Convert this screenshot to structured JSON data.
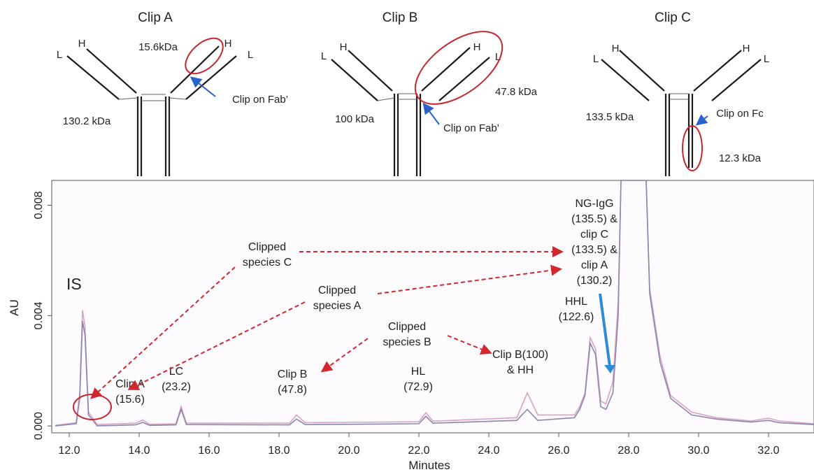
{
  "schematics": [
    {
      "title": "Clip A",
      "heavy_left": "H",
      "light_left": "L",
      "heavy_right": "H",
      "light_right": "L",
      "mass_main": "130.2 kDa",
      "mass_clip": "15.6kDa",
      "note": "Clip on Fab’"
    },
    {
      "title": "Clip B",
      "heavy_left": "H",
      "light_left": "L",
      "heavy_right": "H",
      "light_right": "L",
      "mass_main": "100 kDa",
      "mass_clip": "47.8 kDa",
      "note": "Clip on Fab’"
    },
    {
      "title": "Clip C",
      "heavy_left": "H",
      "light_left": "L",
      "heavy_right": "H",
      "light_right": "L",
      "mass_main": "133.5 kDa",
      "mass_clip": "12.3 kDa",
      "note": "Clip on Fc"
    }
  ],
  "chart_data": {
    "type": "line",
    "xlabel": "Minutes",
    "ylabel": "AU",
    "xlim": [
      11.5,
      33.3
    ],
    "ylim": [
      -0.00025,
      0.0089
    ],
    "x_ticks": [
      "12.0",
      "14.0",
      "16.0",
      "18.0",
      "20.0",
      "22.0",
      "24.0",
      "26.0",
      "28.0",
      "30.0",
      "32.0"
    ],
    "y_ticks": [
      "0.000",
      "0.004",
      "0.008"
    ],
    "series": [
      {
        "color": "#d8a3c0",
        "points": [
          [
            11.6,
            2e-05
          ],
          [
            12.2,
            0.00012
          ],
          [
            12.3,
            0.0012
          ],
          [
            12.38,
            0.0042
          ],
          [
            12.45,
            0.0036
          ],
          [
            12.55,
            0.0005
          ],
          [
            12.8,
            5e-05
          ],
          [
            13.9,
            0.0001
          ],
          [
            14.1,
            0.00022
          ],
          [
            14.3,
            6e-05
          ],
          [
            15.05,
            8e-05
          ],
          [
            15.2,
            0.0007
          ],
          [
            15.35,
            0.0001
          ],
          [
            18.3,
            0.0001
          ],
          [
            18.5,
            0.0004
          ],
          [
            18.75,
            0.00012
          ],
          [
            22.0,
            0.00015
          ],
          [
            22.2,
            0.00048
          ],
          [
            22.4,
            0.00017
          ],
          [
            24.8,
            0.0003
          ],
          [
            25.1,
            0.0012
          ],
          [
            25.4,
            0.0004
          ],
          [
            26.45,
            0.0004
          ],
          [
            26.6,
            0.0007
          ],
          [
            26.75,
            0.0012
          ],
          [
            26.9,
            0.0032
          ],
          [
            27.05,
            0.0028
          ],
          [
            27.2,
            0.0009
          ],
          [
            27.35,
            0.0008
          ],
          [
            27.55,
            0.0016
          ],
          [
            27.7,
            0.0045
          ],
          [
            27.78,
            0.0089
          ],
          [
            28.5,
            0.0089
          ],
          [
            28.6,
            0.005
          ],
          [
            28.9,
            0.0025
          ],
          [
            29.2,
            0.0011
          ],
          [
            29.8,
            0.0005
          ],
          [
            30.5,
            0.0003
          ],
          [
            31.5,
            0.00018
          ],
          [
            32.0,
            0.00028
          ],
          [
            32.3,
            0.00018
          ],
          [
            33.3,
            8e-05
          ]
        ]
      },
      {
        "color": "#8a86b0",
        "points": [
          [
            11.6,
            0.0
          ],
          [
            12.2,
            8e-05
          ],
          [
            12.3,
            0.001
          ],
          [
            12.38,
            0.0038
          ],
          [
            12.45,
            0.0033
          ],
          [
            12.55,
            0.0004
          ],
          [
            12.8,
            0.0
          ],
          [
            13.9,
            4e-05
          ],
          [
            14.1,
            0.00013
          ],
          [
            14.3,
            2e-05
          ],
          [
            15.05,
            4e-05
          ],
          [
            15.2,
            0.0006
          ],
          [
            15.35,
            5e-05
          ],
          [
            18.3,
            4e-05
          ],
          [
            18.5,
            0.00025
          ],
          [
            18.75,
            5e-05
          ],
          [
            22.0,
            8e-05
          ],
          [
            22.2,
            0.00035
          ],
          [
            22.4,
            0.0001
          ],
          [
            24.8,
            0.0002
          ],
          [
            25.1,
            0.0006
          ],
          [
            25.4,
            0.0002
          ],
          [
            26.45,
            0.0003
          ],
          [
            26.6,
            0.0006
          ],
          [
            26.75,
            0.0011
          ],
          [
            26.9,
            0.003
          ],
          [
            27.05,
            0.0026
          ],
          [
            27.2,
            0.0007
          ],
          [
            27.35,
            0.0006
          ],
          [
            27.55,
            0.0012
          ],
          [
            27.7,
            0.004
          ],
          [
            27.78,
            0.0089
          ],
          [
            28.5,
            0.0089
          ],
          [
            28.6,
            0.0048
          ],
          [
            28.9,
            0.0023
          ],
          [
            29.2,
            0.001
          ],
          [
            29.8,
            0.0004
          ],
          [
            30.5,
            0.00025
          ],
          [
            31.5,
            0.00014
          ],
          [
            32.0,
            0.0002
          ],
          [
            32.3,
            0.00012
          ],
          [
            33.3,
            5e-05
          ]
        ]
      }
    ],
    "annotations": {
      "is": "IS",
      "peaks": [
        {
          "lines": [
            "Clip A",
            "(15.6)"
          ]
        },
        {
          "lines": [
            "LC",
            "(23.2)"
          ]
        },
        {
          "lines": [
            "Clip B",
            "(47.8)"
          ]
        },
        {
          "lines": [
            "HL",
            "(72.9)"
          ]
        },
        {
          "lines": [
            "Clip B(100)",
            "& HH"
          ]
        },
        {
          "lines": [
            "HHL",
            "(122.6)"
          ]
        },
        {
          "lines": [
            "NG-IgG",
            "(135.5) &",
            "clip C",
            "(133.5) &",
            "clip A",
            "(130.2)"
          ]
        }
      ],
      "species": [
        {
          "lines": [
            "Clipped",
            "species C"
          ]
        },
        {
          "lines": [
            "Clipped",
            "species A"
          ]
        },
        {
          "lines": [
            "Clipped",
            "species B"
          ]
        }
      ]
    }
  }
}
